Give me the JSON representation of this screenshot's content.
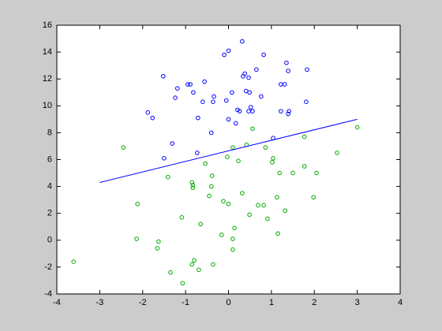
{
  "chart_data": {
    "type": "scatter",
    "xlim": [
      -4,
      4
    ],
    "ylim": [
      -4,
      16
    ],
    "xticks": [
      -4,
      -3,
      -2,
      -1,
      0,
      1,
      2,
      3,
      4
    ],
    "yticks": [
      -4,
      -2,
      0,
      2,
      4,
      6,
      8,
      10,
      12,
      14,
      16
    ],
    "series": [
      {
        "color": "#0000ff",
        "marker": "circle",
        "x": [
          0.32,
          0,
          -0.1,
          0.82,
          1.35,
          0.38,
          0.34,
          0.65,
          0.47,
          1.83,
          1.39,
          -1.52,
          -0.56,
          -0.95,
          -0.89,
          -1.19,
          1.22,
          1.31,
          -0.82,
          0.08,
          0.41,
          0.49,
          -0.34,
          -1.24,
          0.76,
          -0.36,
          -0.6,
          -0.05,
          1.81,
          0.52,
          0.21,
          0.26,
          0.47,
          0.56,
          1.41,
          1.22,
          1.39,
          -1.88,
          -1.77,
          -0.71,
          0,
          0.17,
          -0.4,
          -1.31,
          -0.73,
          -1.5,
          1.04
        ],
        "y": [
          14.8,
          14.1,
          13.8,
          13.8,
          13.2,
          12.4,
          12.2,
          12.7,
          12.1,
          12.7,
          12.6,
          12.2,
          11.8,
          11.6,
          11.6,
          11.3,
          11.6,
          11.6,
          11.0,
          11.0,
          11.1,
          11.0,
          10.7,
          10.6,
          10.7,
          10.3,
          10.3,
          10.4,
          10.3,
          9.9,
          9.7,
          9.6,
          9.6,
          9.6,
          9.6,
          9.6,
          9.4,
          9.5,
          9.1,
          9.1,
          9.0,
          8.7,
          8.0,
          7.2,
          6.5,
          6.1,
          7.6
        ]
      },
      {
        "color": "#00aa00",
        "marker": "circle",
        "x": [
          0.56,
          3.0,
          1.77,
          -2.45,
          0.1,
          0.42,
          0.86,
          2.53,
          1.04,
          1.02,
          0.23,
          -0.03,
          -0.54,
          1.77,
          1.5,
          1.19,
          2.05,
          -0.38,
          -1.41,
          -0.85,
          -0.83,
          -0.83,
          -0.4,
          -0.45,
          0.32,
          1.13,
          1.98,
          -2.12,
          -0.12,
          0,
          0.82,
          0.69,
          1.32,
          0.49,
          0.91,
          -1.09,
          -0.65,
          0.14,
          -0.16,
          1.15,
          -2.14,
          -1.63,
          0.1,
          -1.66,
          0.1,
          -3.61,
          -0.8,
          -0.85,
          -0.36,
          -1.35,
          -0.69,
          -1.07
        ],
        "y": [
          8.3,
          8.4,
          7.7,
          6.9,
          6.9,
          7.1,
          6.9,
          6.5,
          6.1,
          5.8,
          5.9,
          6.2,
          5.7,
          5.5,
          5.0,
          5.0,
          5.0,
          4.8,
          4.7,
          4.3,
          4.1,
          3.9,
          4.0,
          3.3,
          3.5,
          3.2,
          3.2,
          2.7,
          2.9,
          2.7,
          2.6,
          2.6,
          2.2,
          1.9,
          1.6,
          1.7,
          1.2,
          0.9,
          0.4,
          0.5,
          0.1,
          -0.1,
          0.1,
          -0.6,
          -0.7,
          -1.6,
          -1.5,
          -1.8,
          -1.8,
          -2.4,
          -2.2,
          -3.2
        ]
      },
      {
        "color": "#0000ff",
        "marker": "line",
        "x": [
          -3,
          3
        ],
        "y": [
          4.3,
          9.0
        ]
      }
    ]
  }
}
